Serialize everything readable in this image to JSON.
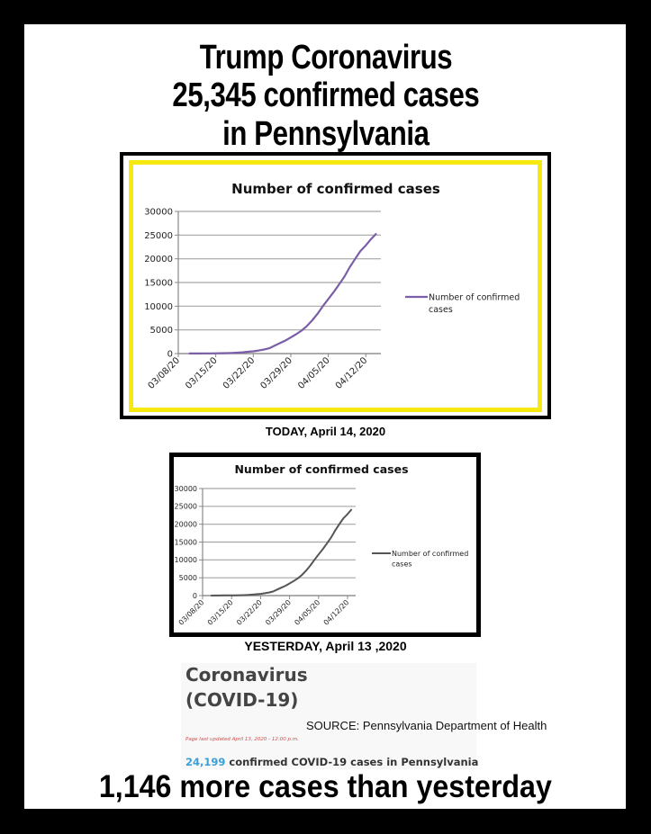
{
  "headline": {
    "line1": "Trump Coronavirus",
    "line2": "25,345 confirmed cases",
    "line3": "in Pennsylvania"
  },
  "captions": {
    "today": "TODAY, April 14, 2020",
    "yesterday": "YESTERDAY, April 13 ,2020"
  },
  "doh": {
    "title_line1": "Coronavirus",
    "title_line2": "(COVID-19)",
    "source": "SOURCE: Pennsylvania Department of Health",
    "updated": "Page last updated April 13, 2020 - 12:00 p.m.",
    "count_number": "24,199",
    "count_text": " confirmed COVID-19 cases in Pennsylvania"
  },
  "footer": "1,146 more cases than yesterday",
  "colors": {
    "frame": "#000000",
    "highlight_border": "#f5e90f",
    "today_line": "#7b5ea7",
    "yesterday_line": "#555555",
    "count_accent": "#3aa0d8",
    "updated_text": "#d24a4a",
    "gridline": "#a6a6a6"
  },
  "chart_data": [
    {
      "type": "line",
      "title": "Number of confirmed cases",
      "label": "TODAY, April 14, 2020",
      "xlabel": "",
      "ylabel": "",
      "ylim": [
        0,
        30000
      ],
      "yticks": [
        0,
        5000,
        10000,
        15000,
        20000,
        25000,
        30000
      ],
      "xticks": [
        "03/08/20",
        "03/15/20",
        "03/22/20",
        "03/29/20",
        "04/05/20",
        "04/12/20"
      ],
      "grid": true,
      "legend_position": "right",
      "x": [
        "03/10/20",
        "03/11/20",
        "03/12/20",
        "03/13/20",
        "03/14/20",
        "03/15/20",
        "03/16/20",
        "03/17/20",
        "03/18/20",
        "03/19/20",
        "03/20/20",
        "03/21/20",
        "03/22/20",
        "03/23/20",
        "03/24/20",
        "03/25/20",
        "03/26/20",
        "03/27/20",
        "03/28/20",
        "03/29/20",
        "03/30/20",
        "03/31/20",
        "04/01/20",
        "04/02/20",
        "04/03/20",
        "04/04/20",
        "04/05/20",
        "04/06/20",
        "04/07/20",
        "04/08/20",
        "04/09/20",
        "04/10/20",
        "04/11/20",
        "04/12/20",
        "04/13/20",
        "04/14/20"
      ],
      "series": [
        {
          "name": "Number of confirmed cases",
          "color": "#7b5ea7",
          "values": [
            12,
            16,
            22,
            41,
            47,
            63,
            76,
            96,
            133,
            185,
            268,
            371,
            479,
            644,
            851,
            1127,
            1687,
            2218,
            2751,
            3394,
            4087,
            4843,
            5805,
            7016,
            8420,
            10017,
            11510,
            12980,
            14559,
            16239,
            18228,
            19979,
            21655,
            22833,
            24199,
            25345
          ]
        }
      ]
    },
    {
      "type": "line",
      "title": "Number of confirmed cases",
      "label": "YESTERDAY, April 13 ,2020",
      "xlabel": "",
      "ylabel": "",
      "ylim": [
        0,
        30000
      ],
      "yticks": [
        0,
        5000,
        10000,
        15000,
        20000,
        25000,
        30000
      ],
      "xticks": [
        "03/08/20",
        "03/15/20",
        "03/22/20",
        "03/29/20",
        "04/05/20",
        "04/12/20"
      ],
      "grid": true,
      "legend_position": "right",
      "x": [
        "03/10/20",
        "03/11/20",
        "03/12/20",
        "03/13/20",
        "03/14/20",
        "03/15/20",
        "03/16/20",
        "03/17/20",
        "03/18/20",
        "03/19/20",
        "03/20/20",
        "03/21/20",
        "03/22/20",
        "03/23/20",
        "03/24/20",
        "03/25/20",
        "03/26/20",
        "03/27/20",
        "03/28/20",
        "03/29/20",
        "03/30/20",
        "03/31/20",
        "04/01/20",
        "04/02/20",
        "04/03/20",
        "04/04/20",
        "04/05/20",
        "04/06/20",
        "04/07/20",
        "04/08/20",
        "04/09/20",
        "04/10/20",
        "04/11/20",
        "04/12/20",
        "04/13/20"
      ],
      "series": [
        {
          "name": "Number of confirmed cases",
          "color": "#555555",
          "values": [
            12,
            16,
            22,
            41,
            47,
            63,
            76,
            96,
            133,
            185,
            268,
            371,
            479,
            644,
            851,
            1127,
            1687,
            2218,
            2751,
            3394,
            4087,
            4843,
            5805,
            7016,
            8420,
            10017,
            11510,
            12980,
            14559,
            16239,
            18228,
            19979,
            21655,
            22833,
            24199
          ]
        }
      ]
    }
  ]
}
